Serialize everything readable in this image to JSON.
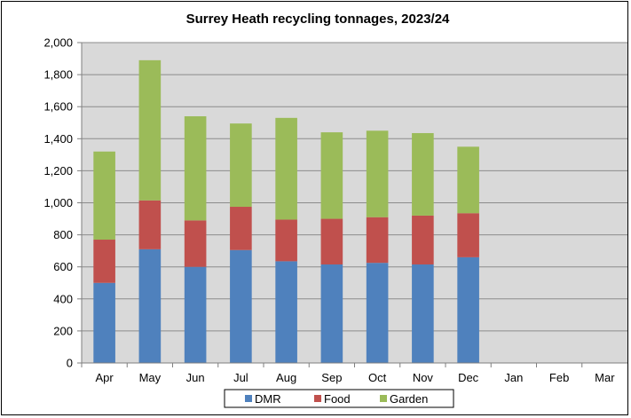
{
  "chart_data": {
    "type": "bar",
    "stacked": true,
    "title": "Surrey Heath recycling tonnages, 2023/24",
    "xlabel": "",
    "ylabel": "",
    "categories": [
      "Apr",
      "May",
      "Jun",
      "Jul",
      "Aug",
      "Sep",
      "Oct",
      "Nov",
      "Dec",
      "Jan",
      "Feb",
      "Mar"
    ],
    "series": [
      {
        "name": "DMR",
        "color": "#4F81BD",
        "values": [
          500,
          710,
          600,
          705,
          635,
          615,
          625,
          615,
          660,
          null,
          null,
          null
        ]
      },
      {
        "name": "Food",
        "color": "#C0504D",
        "values": [
          270,
          305,
          290,
          270,
          260,
          285,
          285,
          305,
          275,
          null,
          null,
          null
        ]
      },
      {
        "name": "Garden",
        "color": "#9BBB59",
        "values": [
          550,
          875,
          650,
          520,
          635,
          540,
          540,
          515,
          415,
          null,
          null,
          null
        ]
      }
    ],
    "ylim": [
      0,
      2000
    ],
    "yticks": [
      "0",
      "200",
      "400",
      "600",
      "800",
      "1,000",
      "1,200",
      "1,400",
      "1,600",
      "1,800",
      "2,000"
    ],
    "ytick_values": [
      0,
      200,
      400,
      600,
      800,
      1000,
      1200,
      1400,
      1600,
      1800,
      2000
    ],
    "grid": true,
    "legend_position": "bottom",
    "plot_background": "#D9D9D9"
  }
}
